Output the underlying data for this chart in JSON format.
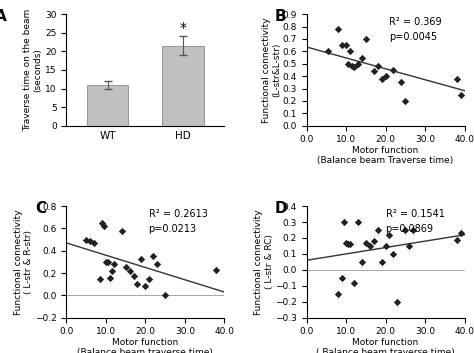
{
  "panel_A": {
    "categories": [
      "WT",
      "HD"
    ],
    "values": [
      11.0,
      21.5
    ],
    "errors": [
      1.0,
      2.5
    ],
    "bar_color": "#c0c0c0",
    "ylim": [
      0,
      30
    ],
    "yticks": [
      0,
      5,
      10,
      15,
      20,
      25,
      30
    ],
    "ylabel": "Traverse time on the beam\n(seconds)",
    "star_label": "*",
    "label": "A"
  },
  "panel_B": {
    "x": [
      5.5,
      8.0,
      9.0,
      10.0,
      10.5,
      11.0,
      11.5,
      12.0,
      13.0,
      14.0,
      15.0,
      17.0,
      18.0,
      19.0,
      20.0,
      22.0,
      24.0,
      25.0,
      38.0,
      39.0
    ],
    "y": [
      0.6,
      0.78,
      0.65,
      0.65,
      0.5,
      0.6,
      0.48,
      0.47,
      0.5,
      0.55,
      0.7,
      0.44,
      0.48,
      0.38,
      0.4,
      0.45,
      0.35,
      0.2,
      0.38,
      0.25
    ],
    "r2": "R² = 0.369",
    "pval": "p=0.0045",
    "xlim": [
      0,
      40
    ],
    "ylim": [
      0,
      0.9
    ],
    "xtick_labels": [
      "0.0",
      "10.0",
      "20.0",
      "30.0",
      "40.0"
    ],
    "xticks": [
      0.0,
      10.0,
      20.0,
      30.0,
      40.0
    ],
    "yticks": [
      0,
      0.1,
      0.2,
      0.3,
      0.4,
      0.5,
      0.6,
      0.7,
      0.8,
      0.9
    ],
    "xlabel": "Motor function\n(Balance beam Traverse time)",
    "ylabel": "Functional connectivity\n(L-str&L-str)",
    "trendline": {
      "slope": -0.0088,
      "intercept": 0.635
    },
    "label": "B"
  },
  "panel_C": {
    "x": [
      5.0,
      6.0,
      7.0,
      8.5,
      9.0,
      9.5,
      10.0,
      10.5,
      11.0,
      11.5,
      12.0,
      14.0,
      15.0,
      16.0,
      17.0,
      18.0,
      19.0,
      20.0,
      21.0,
      22.0,
      23.0,
      25.0,
      38.0
    ],
    "y": [
      0.5,
      0.49,
      0.47,
      0.15,
      0.65,
      0.62,
      0.3,
      0.3,
      0.16,
      0.22,
      0.28,
      0.58,
      0.25,
      0.22,
      0.17,
      0.1,
      0.33,
      0.08,
      0.15,
      0.35,
      0.28,
      0.0,
      0.23
    ],
    "r2": "R² = 0.2613",
    "pval": "p=0.0213",
    "xlim": [
      0,
      40
    ],
    "ylim": [
      -0.2,
      0.8
    ],
    "xtick_labels": [
      "0.0",
      "10.0",
      "20.0",
      "30.0",
      "40.0"
    ],
    "xticks": [
      0.0,
      10.0,
      20.0,
      30.0,
      40.0
    ],
    "yticks": [
      -0.2,
      0.0,
      0.2,
      0.4,
      0.6,
      0.8
    ],
    "xlabel": "Motor function\n(Balance beam traverse time)",
    "ylabel": "Functional connectivity\n( L-str & R-str)",
    "trendline": {
      "slope": -0.011,
      "intercept": 0.47
    },
    "label": "C"
  },
  "panel_D": {
    "x": [
      8.0,
      9.0,
      9.5,
      10.0,
      10.5,
      11.0,
      12.0,
      13.0,
      14.0,
      15.0,
      16.0,
      17.0,
      18.0,
      19.0,
      20.0,
      21.0,
      22.0,
      23.0,
      25.0,
      26.0,
      27.0,
      38.0,
      39.0
    ],
    "y": [
      -0.15,
      -0.05,
      0.3,
      0.17,
      0.16,
      0.16,
      -0.08,
      0.3,
      0.05,
      0.17,
      0.15,
      0.18,
      0.25,
      0.05,
      0.15,
      0.22,
      0.1,
      -0.2,
      0.25,
      0.15,
      0.25,
      0.19,
      0.23
    ],
    "r2": "R² = 0.1541",
    "pval": "p=0.0869",
    "xlim": [
      0,
      40
    ],
    "ylim": [
      -0.3,
      0.4
    ],
    "xtick_labels": [
      "0.0",
      "10.0",
      "20.0",
      "30.0",
      "40.0"
    ],
    "xticks": [
      0.0,
      10.0,
      20.0,
      30.0,
      40.0
    ],
    "yticks": [
      -0.3,
      -0.2,
      -0.1,
      0.0,
      0.1,
      0.2,
      0.3,
      0.4
    ],
    "xlabel": "Motor function\n( Balance beam traverse time)",
    "ylabel": "Functional connectivity\n( L-str & RC)",
    "trendline": {
      "slope": 0.004,
      "intercept": 0.06
    },
    "label": "D"
  },
  "bg_color": "#ffffff",
  "scatter_color": "#222222",
  "line_color": "#333333"
}
